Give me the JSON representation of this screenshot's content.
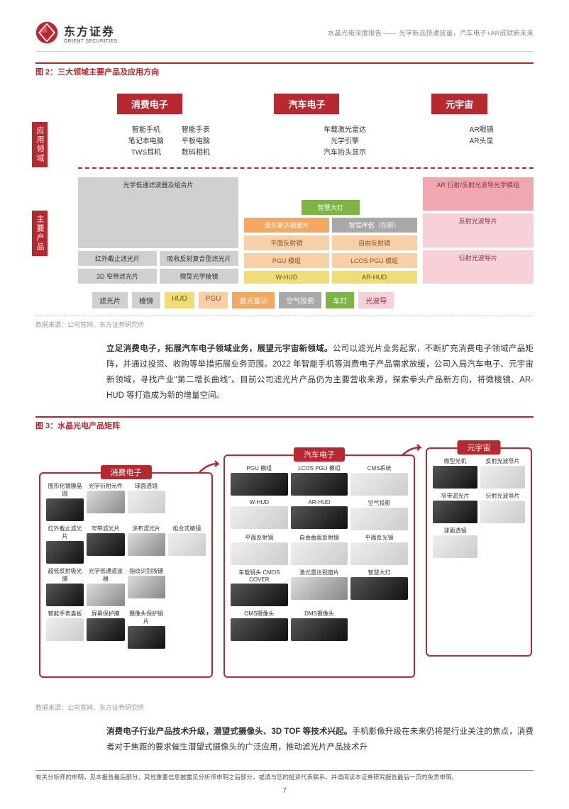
{
  "header": {
    "logo_cn": "东方证券",
    "logo_en": "ORIENT SECURITIES",
    "right": "水晶光电深度报告 —— 光学新品快速放量，汽车电子+AR成就新未来"
  },
  "fig2": {
    "title": "图 2：三大领域主要产品及应用方向",
    "domains": [
      "消费电子",
      "汽车电子",
      "元宇宙"
    ],
    "side_app": "应用领域",
    "side_prod": "主要产品",
    "app_ce_l": "智能手机\n笔记本电脑\nTWS耳机",
    "app_ce_r": "智能手表\n平板电脑\n数码相机",
    "app_auto": "车载激光雷达\n光学引擎\n汽车抬头显示",
    "app_meta": "AR眼镜\nAR头显",
    "ce": {
      "a": "光学低通滤波器及组合片",
      "b": "红外截止滤光片",
      "c": "吸收反射复合型滤光片",
      "d": "3D 窄带滤光片",
      "e": "微型光学棱镜"
    },
    "auto": {
      "hl": "智慧大灯",
      "lr": "激光雷达视窗片",
      "pal": "智驾伴侣（在研）",
      "pm": "平面反射镜",
      "fm": "自由反射镜",
      "pgu": "PGU 模组",
      "lcos": "LCOS PGU 模组",
      "whud": "W-HUD",
      "arhud": "AR-HUD"
    },
    "meta": {
      "a": "AR 衍射/反射光波导光学模组",
      "b": "反射光波导片",
      "c": "衍射光波导片"
    },
    "cats": [
      {
        "t": "滤光片",
        "c": "c-gray"
      },
      {
        "t": "棱镜",
        "c": "c-gray"
      },
      {
        "t": "HUD",
        "c": "c-yellow"
      },
      {
        "t": "PGU",
        "c": "c-lorange"
      },
      {
        "t": "激光雷达",
        "c": "c-orange"
      },
      {
        "t": "空气投影",
        "c": "c-dgray"
      },
      {
        "t": "车灯",
        "c": "c-green"
      },
      {
        "t": "光波导",
        "c": "c-lpink"
      }
    ],
    "source": "数据来源：公司官网、东方证券研究所"
  },
  "para1": {
    "bold": "立足消费电子，拓展汽车电子领域业务，展望元宇宙新领域。",
    "text": "公司以滤光片业务起家，不断扩充消费电子领域产品矩阵，并通过投资、收购等举措拓展业务范围。2022 年智能手机等消费电子产品需求放缓，公司入局汽车电子、元宇宙新领域，寻找产业\"第二增长曲线\"。目前公司滤光片产品仍为主要营收来源，探索拳头产品新方向，将微棱镜、AR-HUD 等打造成为新的增量空间。"
  },
  "fig3": {
    "title": "图 3：水晶光电产品矩阵",
    "panel_ce": "消费电子",
    "panel_auto": "汽车电子",
    "panel_meta": "元宇宙",
    "ce_items": [
      "图形化镀膜晶圆",
      "光学衍射元件",
      "球面透镜",
      "",
      "红外截止滤光片",
      "窄带滤光片",
      "涂布滤光片",
      "组合式棱镜",
      "超低反射吸光膜",
      "光学低通滤波器",
      "指纹识别按键",
      "",
      "智能手表盖板",
      "屏幕保护膜",
      "摄像头保护镜片",
      ""
    ],
    "auto_items": [
      "PGU 模组",
      "LCOS PGU 模组",
      "CMS系统",
      "W-HUD",
      "AR-HUD",
      "空气投影",
      "平面反射镜",
      "自由曲面反射镜",
      "平面反光镜",
      "车载镜头 CMOS COVER",
      "激光雷达视窗片",
      "智慧大灯",
      "OMS摄像头",
      "DMS摄像头",
      ""
    ],
    "meta_items": [
      "微型光机",
      "反射光波导片",
      "窄带滤光片",
      "衍射光波导片",
      "球面透镜",
      ""
    ],
    "source": "数据来源：公司官网、东方证券研究所"
  },
  "para2": {
    "bold": "消费电子行业产品技术升级，潜望式摄像头、3D TOF 等技术兴起。",
    "text": "手机影像升级在未来仍将是行业关注的焦点，消费者对于焦距的要求催生潜望式摄像头的广泛应用，推动滤光片产品技术升"
  },
  "footer": {
    "text": "有关分析师的申明，见本报告最后部分。其他重要信息披露见分析师申明之后部分，或请与您的投资代表联系。并请阅读本证券研究报告最后一页的免责申明。",
    "page": "7"
  }
}
